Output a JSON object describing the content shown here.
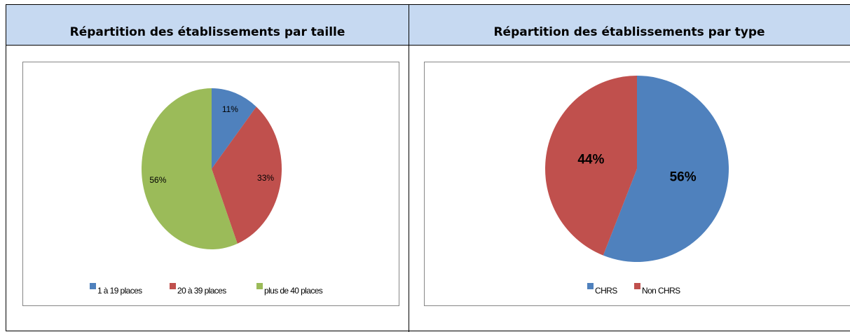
{
  "chart_data": [
    {
      "type": "pie",
      "title": "Répartition des établissements par taille",
      "categories": [
        "1 à 19 places",
        "20 à 39 places",
        "plus de 40 places"
      ],
      "values": [
        11,
        33,
        56
      ],
      "value_labels": [
        "11%",
        "33%",
        "56%"
      ],
      "colors": [
        "#4f81bd",
        "#c0504d",
        "#9bbb59"
      ],
      "legend": "bottom"
    },
    {
      "type": "pie",
      "title": "Répartition des établissements par type",
      "categories": [
        "CHRS",
        "Non CHRS"
      ],
      "values": [
        56,
        44
      ],
      "value_labels": [
        "56%",
        "44%"
      ],
      "colors": [
        "#4f81bd",
        "#c0504d"
      ],
      "legend": "bottom"
    }
  ]
}
